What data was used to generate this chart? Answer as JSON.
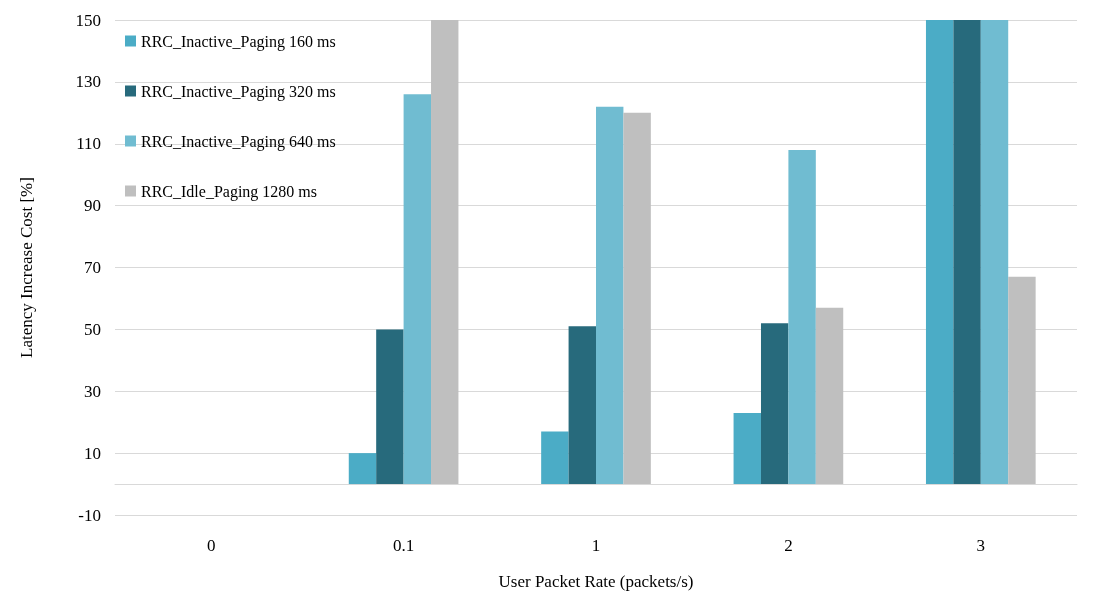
{
  "chart_data": {
    "type": "bar",
    "xlabel": "User Packet Rate (packets/s)",
    "ylabel": "Latency Increase Cost [%]",
    "categories": [
      "0",
      "0.1",
      "1",
      "2",
      "3"
    ],
    "series": [
      {
        "name": "RRC_Inactive_Paging 160 ms",
        "color": "#4bacc6",
        "values": [
          0,
          10,
          17,
          23,
          150
        ]
      },
      {
        "name": "RRC_Inactive_Paging 320 ms",
        "color": "#276a7c",
        "values": [
          0,
          50,
          51,
          52,
          150
        ]
      },
      {
        "name": "RRC_Inactive_Paging 640 ms",
        "color": "#70bcd1",
        "values": [
          0,
          126,
          122,
          108,
          150
        ]
      },
      {
        "name": "RRC_Idle_Paging 1280 ms",
        "color": "#bfbfbf",
        "values": [
          0,
          150,
          120,
          57,
          67
        ]
      }
    ],
    "ylim": [
      -10,
      150
    ],
    "yticks": [
      -10,
      10,
      30,
      50,
      70,
      90,
      110,
      130,
      150
    ],
    "grid": "y",
    "legend": "top left"
  }
}
